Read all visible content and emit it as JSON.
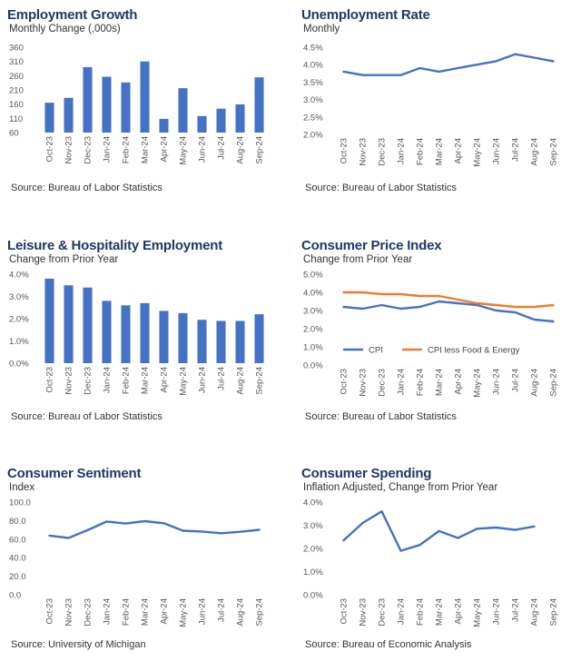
{
  "chart_data": [
    {
      "type": "bar",
      "title": "Employment Growth",
      "subtitle": "Monthly Change (,000s)",
      "source": "Source: Bureau of Labor Statistics",
      "categories": [
        "Oct-23",
        "Nov-23",
        "Dec-23",
        "Jan-24",
        "Feb-24",
        "Mar-24",
        "Apr-24",
        "May-24",
        "Jun-24",
        "Jul-24",
        "Aug-24",
        "Sep-24"
      ],
      "values": [
        165,
        182,
        290,
        256,
        236,
        310,
        108,
        216,
        118,
        144,
        159,
        254
      ],
      "ylim": [
        60,
        360
      ],
      "yticks": [
        60,
        110,
        160,
        210,
        260,
        310,
        360
      ],
      "ytick_labels": [
        "60",
        "110",
        "160",
        "210",
        "260",
        "310",
        "360"
      ],
      "color": "#4472c4"
    },
    {
      "type": "line",
      "title": "Unemployment Rate",
      "subtitle": "Monthly",
      "source": "Source: Bureau of Labor Statistics",
      "categories": [
        "Oct-23",
        "Nov-23",
        "Dec-23",
        "Jan-24",
        "Feb-24",
        "Mar-24",
        "Apr-24",
        "May-24",
        "Jun-24",
        "Jul-24",
        "Aug-24",
        "Sep-24"
      ],
      "series": [
        {
          "values": [
            3.8,
            3.7,
            3.7,
            3.7,
            3.9,
            3.8,
            3.9,
            4.0,
            4.1,
            4.3,
            4.2,
            4.1
          ],
          "color": "#4472c4"
        }
      ],
      "ylim": [
        2.0,
        4.5
      ],
      "yticks": [
        2.0,
        2.5,
        3.0,
        3.5,
        4.0,
        4.5
      ],
      "ytick_labels": [
        "2.0%",
        "2.5%",
        "3.0%",
        "3.5%",
        "4.0%",
        "4.5%"
      ]
    },
    {
      "type": "bar",
      "title": "Leisure & Hospitality Employment",
      "subtitle": "Change from Prior Year",
      "source": "Source: Bureau of Labor Statistics",
      "categories": [
        "Oct-23",
        "Nov-23",
        "Dec-23",
        "Jan-24",
        "Feb-24",
        "Mar-24",
        "Apr-24",
        "May-24",
        "Jun-24",
        "Jul-24",
        "Aug-24",
        "Sep-24"
      ],
      "values": [
        3.8,
        3.5,
        3.4,
        2.8,
        2.6,
        2.7,
        2.35,
        2.25,
        1.95,
        1.9,
        1.9,
        2.2
      ],
      "ylim": [
        0,
        4.0
      ],
      "yticks": [
        0,
        1.0,
        2.0,
        3.0,
        4.0
      ],
      "ytick_labels": [
        "0.0%",
        "1.0%",
        "2.0%",
        "3.0%",
        "4.0%"
      ],
      "color": "#4472c4"
    },
    {
      "type": "line",
      "title": "Consumer Price Index",
      "subtitle": "Change from Prior Year",
      "source": "Source: Bureau of Labor Statistics",
      "categories": [
        "Oct-23",
        "Nov-23",
        "Dec-23",
        "Jan-24",
        "Feb-24",
        "Mar-24",
        "Apr-24",
        "May-24",
        "Jun-24",
        "Jul-24",
        "Aug-24",
        "Sep-24"
      ],
      "series": [
        {
          "name": "CPI",
          "values": [
            3.2,
            3.1,
            3.3,
            3.1,
            3.2,
            3.5,
            3.4,
            3.3,
            3.0,
            2.9,
            2.5,
            2.4
          ],
          "color": "#4472c4"
        },
        {
          "name": "CPI less Food & Energy",
          "values": [
            4.0,
            4.0,
            3.9,
            3.9,
            3.8,
            3.8,
            3.6,
            3.4,
            3.3,
            3.2,
            3.2,
            3.3
          ],
          "color": "#ed7d31"
        }
      ],
      "ylim": [
        0,
        5.0
      ],
      "yticks": [
        0,
        1.0,
        2.0,
        3.0,
        4.0,
        5.0
      ],
      "ytick_labels": [
        "0.0%",
        "1.0%",
        "2.0%",
        "3.0%",
        "4.0%",
        "5.0%"
      ],
      "legend": "inside-bottom"
    },
    {
      "type": "line",
      "title": "Consumer Sentiment",
      "subtitle": "Index",
      "source": "Source: University of Michigan",
      "categories": [
        "Oct-23",
        "Nov-23",
        "Dec-23",
        "Jan-24",
        "Feb-24",
        "Mar-24",
        "Apr-24",
        "May-24",
        "Jun-24",
        "Jul-24",
        "Aug-24",
        "Sep-24"
      ],
      "series": [
        {
          "values": [
            63.8,
            61.3,
            69.7,
            79.0,
            76.9,
            79.4,
            77.2,
            69.1,
            68.2,
            66.4,
            67.9,
            70.1
          ],
          "color": "#4472c4"
        }
      ],
      "ylim": [
        0,
        100
      ],
      "yticks": [
        0,
        20,
        40,
        60,
        80,
        100
      ],
      "ytick_labels": [
        "0.0",
        "20.0",
        "40.0",
        "60.0",
        "80.0",
        "100.0"
      ]
    },
    {
      "type": "line",
      "title": "Consumer Spending",
      "subtitle": "Inflation Adjusted, Change from Prior Year",
      "source": "Source: Bureau of Economic Analysis",
      "categories": [
        "Oct-23",
        "Nov-23",
        "Dec-23",
        "Jan-24",
        "Feb-24",
        "Mar-24",
        "Apr-24",
        "May-24",
        "Jun-24",
        "Jul-24",
        "Aug-24",
        "Sep-24"
      ],
      "series": [
        {
          "values": [
            2.35,
            3.1,
            3.6,
            1.9,
            2.15,
            2.75,
            2.45,
            2.85,
            2.9,
            2.8,
            2.95,
            null
          ],
          "color": "#4472c4"
        }
      ],
      "ylim": [
        0,
        4.0
      ],
      "yticks": [
        0,
        1.0,
        2.0,
        3.0,
        4.0
      ],
      "ytick_labels": [
        "0.0%",
        "1.0%",
        "2.0%",
        "3.0%",
        "4.0%"
      ]
    }
  ]
}
